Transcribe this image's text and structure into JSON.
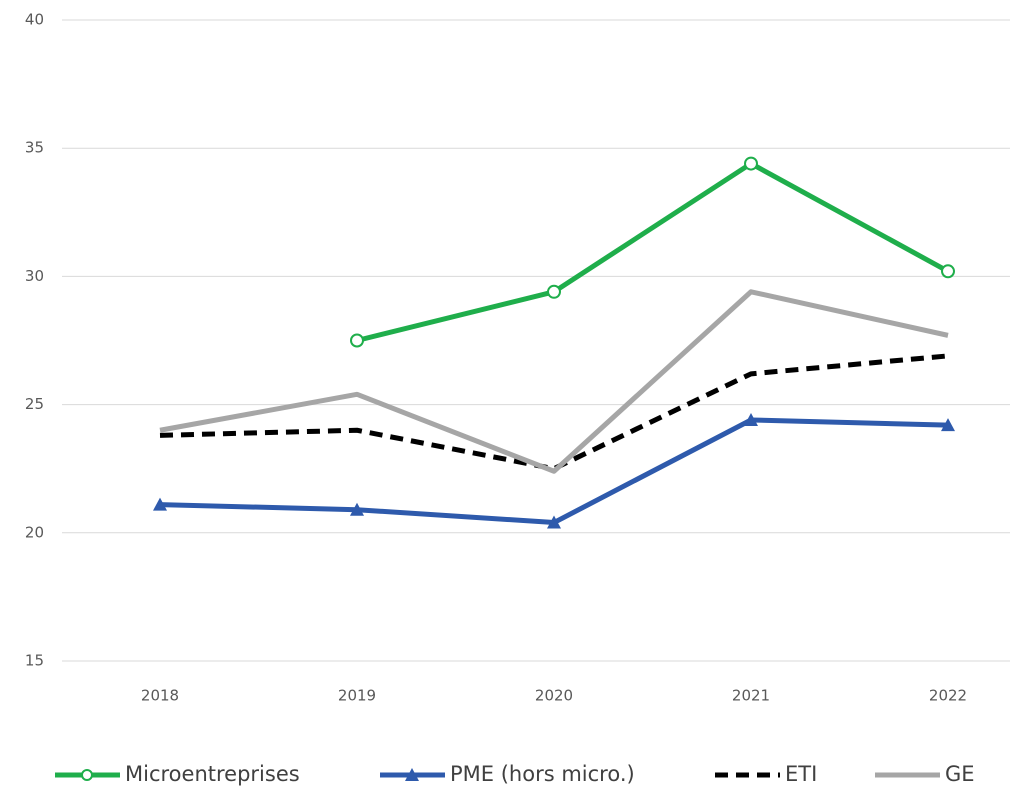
{
  "chart_data": {
    "type": "line",
    "categories": [
      "2018",
      "2019",
      "2020",
      "2021",
      "2022"
    ],
    "series": [
      {
        "name": "Microentreprises",
        "color": "#1fae4b",
        "marker": "circle",
        "dash": false,
        "values": [
          null,
          27.5,
          29.4,
          34.4,
          30.2
        ]
      },
      {
        "name": "PME (hors micro.)",
        "color": "#2e5aac",
        "marker": "triangle",
        "dash": false,
        "values": [
          21.1,
          20.9,
          20.4,
          24.4,
          24.2
        ]
      },
      {
        "name": "ETI",
        "color": "#000000",
        "marker": "none",
        "dash": true,
        "values": [
          23.8,
          24.0,
          22.5,
          26.2,
          26.9
        ]
      },
      {
        "name": "GE",
        "color": "#a6a6a6",
        "marker": "none",
        "dash": false,
        "values": [
          24.0,
          25.4,
          22.4,
          29.4,
          27.7
        ]
      }
    ],
    "ylim": [
      15,
      40
    ],
    "yticks": [
      15,
      20,
      25,
      30,
      35,
      40
    ],
    "grid": true,
    "legend": "bottom"
  }
}
